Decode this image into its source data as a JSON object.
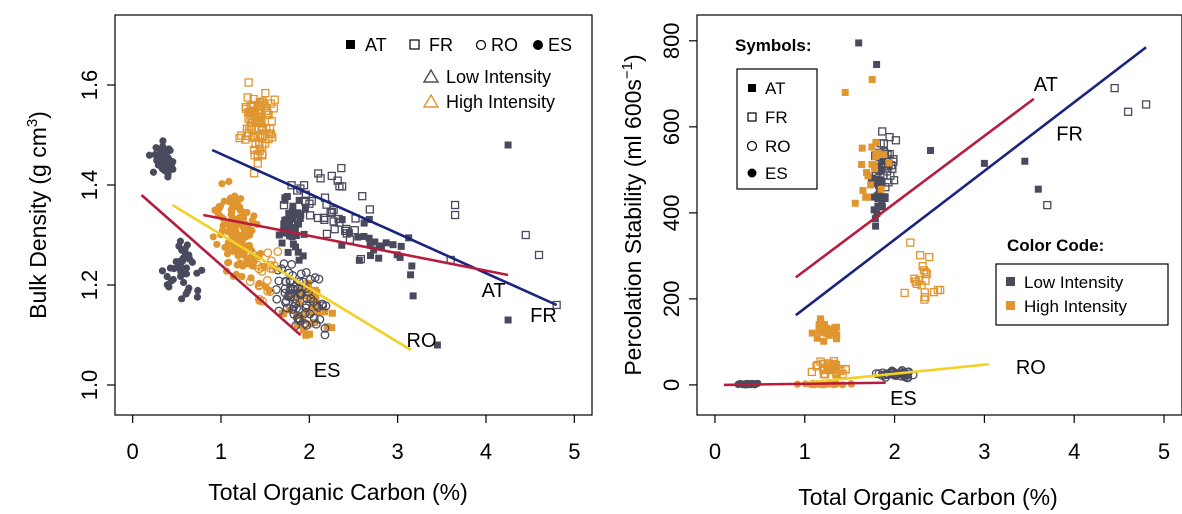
{
  "chart_data": [
    {
      "type": "scatter",
      "panel": "left",
      "xlabel": "Total Organic Carbon (%)",
      "ylabel": "Bulk Density (g cm³)",
      "ylabel_main": "Bulk Density (g cm",
      "ylabel_sup": "3",
      "ylabel_close": ")",
      "xlim": [
        -0.2,
        5.2
      ],
      "ylim": [
        0.94,
        1.74
      ],
      "xticks": [
        0,
        1,
        2,
        3,
        4,
        5
      ],
      "yticks": [
        1.0,
        1.2,
        1.4,
        1.6
      ],
      "ytick_labels": [
        "1.0",
        "1.2",
        "1.4",
        "1.6"
      ],
      "legend": {
        "symbols": [
          "AT",
          "FR",
          "RO",
          "ES"
        ],
        "intensity": [
          "Low Intensity",
          "High Intensity"
        ]
      },
      "colors": {
        "low": "#4a4a5e",
        "high": "#e0952f"
      },
      "lines": [
        {
          "name": "FR",
          "x": [
            0.9,
            4.8
          ],
          "y": [
            1.47,
            1.16
          ],
          "color": "#1a237e",
          "label_x": 4.5,
          "label_y": 1.14
        },
        {
          "name": "AT",
          "x": [
            0.8,
            4.25
          ],
          "y": [
            1.34,
            1.22
          ],
          "color": "#b71c3c",
          "label_x": 3.95,
          "label_y": 1.19
        },
        {
          "name": "RO",
          "x": [
            0.45,
            3.15
          ],
          "y": [
            1.36,
            1.07
          ],
          "color": "#f2d024",
          "label_x": 3.1,
          "label_y": 1.09
        },
        {
          "name": "ES",
          "x": [
            0.1,
            1.9
          ],
          "y": [
            1.38,
            1.1
          ],
          "color": "#b71c3c",
          "label_x": 2.05,
          "label_y": 1.03
        }
      ],
      "seed": 11
    },
    {
      "type": "scatter",
      "panel": "right",
      "xlabel": "Total Organic Carbon (%)",
      "ylabel": "Percolation Stability (ml 600s⁻¹)",
      "ylabel_main": "Percolation Stability (ml 600s",
      "ylabel_sup": "−1",
      "ylabel_close": ")",
      "xlim": [
        -0.2,
        5.2
      ],
      "ylim": [
        -70,
        860
      ],
      "xticks": [
        0,
        1,
        2,
        3,
        4,
        5
      ],
      "yticks": [
        0,
        200,
        400,
        600,
        800
      ],
      "ytick_labels": [
        "0",
        "200",
        "400",
        "600",
        "800"
      ],
      "legend": {
        "symbols_title": "Symbols:",
        "symbols": [
          "AT",
          "FR",
          "RO",
          "ES"
        ],
        "color_title": "Color Code:",
        "intensity": [
          "Low Intensity",
          "High Intensity"
        ]
      },
      "colors": {
        "low": "#4a4a5e",
        "high": "#e0952f"
      },
      "lines": [
        {
          "name": "AT",
          "x": [
            0.9,
            3.55
          ],
          "y": [
            250,
            665
          ],
          "color": "#b71c3c",
          "label_x": 3.55,
          "label_y": 700
        },
        {
          "name": "FR",
          "x": [
            0.9,
            4.8
          ],
          "y": [
            162,
            785
          ],
          "color": "#1a237e",
          "label_x": 3.8,
          "label_y": 585
        },
        {
          "name": "RO",
          "x": [
            1.0,
            3.05
          ],
          "y": [
            5,
            48
          ],
          "color": "#f2d024",
          "label_x": 3.35,
          "label_y": 42
        },
        {
          "name": "ES",
          "x": [
            0.1,
            1.9
          ],
          "y": [
            0,
            5
          ],
          "color": "#b71c3c",
          "label_x": 1.95,
          "label_y": -30
        }
      ],
      "seed": 29
    }
  ]
}
